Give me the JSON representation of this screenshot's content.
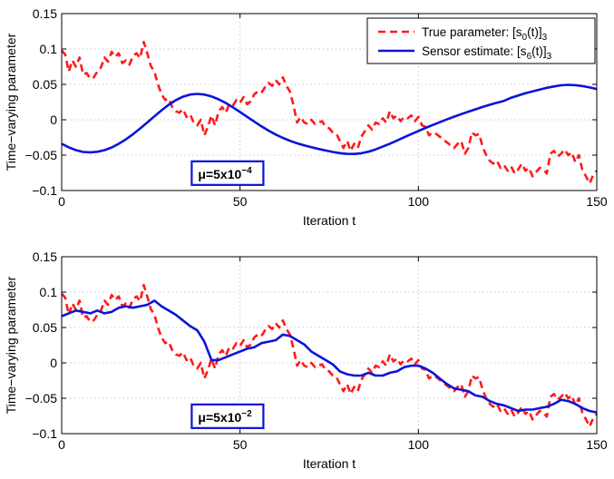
{
  "chart_data": [
    {
      "type": "line",
      "xlabel": "Iteration t",
      "ylabel": "Time−varying parameter",
      "xlim": [
        0,
        150
      ],
      "ylim": [
        -0.1,
        0.15
      ],
      "xticks": [
        0,
        50,
        100,
        150
      ],
      "yticks": [
        -0.1,
        -0.05,
        0,
        0.05,
        0.1,
        0.15
      ],
      "xtick_labels": [
        "0",
        "50",
        "100",
        "150"
      ],
      "ytick_labels": [
        "−0.1",
        "−0.05",
        "0",
        "0.05",
        "0.1",
        "0.15"
      ],
      "grid": true,
      "legend_position": "top-right",
      "annotation": {
        "prefix": "μ=5x10",
        "exponent": "−4",
        "x": 54,
        "y": -0.078
      },
      "series": [
        {
          "name_main": "True parameter: [s",
          "name_sub1": "0",
          "name_mid": "(t)]",
          "name_sub2": "3",
          "style": "dashed",
          "color": "#ff1a1a",
          "x": [
            0,
            1,
            2,
            3,
            4,
            5,
            6,
            7,
            8,
            9,
            10,
            11,
            12,
            13,
            14,
            15,
            16,
            17,
            18,
            19,
            20,
            21,
            22,
            23,
            24,
            25,
            26,
            27,
            28,
            29,
            30,
            31,
            32,
            33,
            34,
            35,
            36,
            37,
            38,
            39,
            40,
            41,
            42,
            43,
            44,
            45,
            46,
            47,
            48,
            49,
            50,
            51,
            52,
            53,
            54,
            55,
            56,
            57,
            58,
            59,
            60,
            61,
            62,
            63,
            64,
            65,
            66,
            67,
            68,
            69,
            70,
            71,
            72,
            73,
            74,
            75,
            76,
            77,
            78,
            79,
            80,
            81,
            82,
            83,
            84,
            85,
            86,
            87,
            88,
            89,
            90,
            91,
            92,
            93,
            94,
            95,
            96,
            97,
            98,
            99,
            100,
            101,
            102,
            103,
            104,
            105,
            106,
            107,
            108,
            109,
            110,
            111,
            112,
            113,
            114,
            115,
            116,
            117,
            118,
            119,
            120,
            121,
            122,
            123,
            124,
            125,
            126,
            127,
            128,
            129,
            130,
            131,
            132,
            133,
            134,
            135,
            136,
            137,
            138,
            139,
            140,
            141,
            142,
            143,
            144,
            145,
            146,
            147,
            148,
            149,
            150
          ],
          "y": [
            0.098,
            0.092,
            0.068,
            0.084,
            0.075,
            0.088,
            0.064,
            0.066,
            0.058,
            0.06,
            0.068,
            0.074,
            0.088,
            0.082,
            0.096,
            0.089,
            0.094,
            0.08,
            0.084,
            0.078,
            0.09,
            0.094,
            0.087,
            0.11,
            0.094,
            0.076,
            0.068,
            0.05,
            0.036,
            0.028,
            0.03,
            0.018,
            0.012,
            0.01,
            0.015,
            0.004,
            0.008,
            -0.004,
            -0.008,
            0.0,
            -0.022,
            -0.01,
            0.006,
            -0.008,
            0.012,
            0.018,
            0.01,
            0.022,
            0.02,
            0.028,
            0.024,
            0.032,
            0.022,
            0.026,
            0.036,
            0.04,
            0.038,
            0.046,
            0.052,
            0.048,
            0.056,
            0.05,
            0.06,
            0.048,
            0.04,
            0.02,
            -0.004,
            0.004,
            -0.004,
            -0.006,
            0.0,
            -0.006,
            -0.004,
            -0.002,
            -0.01,
            -0.012,
            -0.018,
            -0.02,
            -0.03,
            -0.04,
            -0.03,
            -0.044,
            -0.034,
            -0.04,
            -0.024,
            -0.016,
            -0.008,
            -0.014,
            -0.004,
            -0.006,
            0.002,
            -0.004,
            0.012,
            0.002,
            0.006,
            -0.002,
            0.004,
            0.002,
            0.006,
            -0.002,
            0.004,
            -0.008,
            -0.01,
            -0.022,
            -0.018,
            -0.02,
            -0.024,
            -0.028,
            -0.032,
            -0.036,
            -0.04,
            -0.034,
            -0.03,
            -0.048,
            -0.04,
            -0.018,
            -0.022,
            -0.02,
            -0.038,
            -0.05,
            -0.058,
            -0.062,
            -0.058,
            -0.068,
            -0.064,
            -0.072,
            -0.066,
            -0.076,
            -0.07,
            -0.062,
            -0.072,
            -0.068,
            -0.08,
            -0.074,
            -0.068,
            -0.07,
            -0.076,
            -0.048,
            -0.044,
            -0.052,
            -0.048,
            -0.042,
            -0.05,
            -0.046,
            -0.06,
            -0.05,
            -0.072,
            -0.08,
            -0.09,
            -0.078,
            -0.072
          ]
        },
        {
          "name_main": "Sensor estimate: [s",
          "name_sub1": "6",
          "name_mid": "(t)]",
          "name_sub2": "3",
          "style": "solid",
          "color": "#0a14d8",
          "x": [
            0,
            2,
            4,
            6,
            8,
            10,
            12,
            14,
            16,
            18,
            20,
            22,
            24,
            26,
            28,
            30,
            32,
            34,
            36,
            38,
            40,
            42,
            44,
            46,
            48,
            50,
            52,
            54,
            56,
            58,
            60,
            62,
            64,
            66,
            68,
            70,
            72,
            74,
            76,
            78,
            80,
            82,
            84,
            86,
            88,
            90,
            92,
            94,
            96,
            98,
            100,
            102,
            104,
            106,
            108,
            110,
            112,
            114,
            116,
            118,
            120,
            122,
            124,
            126,
            128,
            130,
            132,
            134,
            136,
            138,
            140,
            142,
            144,
            146,
            148,
            150
          ],
          "y": [
            -0.034,
            -0.039,
            -0.043,
            -0.0455,
            -0.046,
            -0.0452,
            -0.043,
            -0.0392,
            -0.034,
            -0.0277,
            -0.0204,
            -0.0123,
            -0.0038,
            0.0049,
            0.0133,
            0.0211,
            0.0277,
            0.0326,
            0.0356,
            0.0366,
            0.0357,
            0.033,
            0.0289,
            0.0237,
            0.0176,
            0.0109,
            0.0041,
            -0.0027,
            -0.0093,
            -0.0154,
            -0.0209,
            -0.0257,
            -0.0298,
            -0.0333,
            -0.0363,
            -0.0389,
            -0.0413,
            -0.0435,
            -0.0455,
            -0.0472,
            -0.0482,
            -0.0483,
            -0.0473,
            -0.0451,
            -0.0419,
            -0.038,
            -0.0338,
            -0.0293,
            -0.0248,
            -0.0203,
            -0.0159,
            -0.0116,
            -0.0074,
            -0.0034,
            0.0005,
            0.0043,
            0.0079,
            0.0114,
            0.0148,
            0.0181,
            0.0212,
            0.024,
            0.0267,
            0.0311,
            0.0344,
            0.0374,
            0.0401,
            0.0427,
            0.0451,
            0.047,
            0.0487,
            0.0493,
            0.0488,
            0.0475,
            0.0456,
            0.0434
          ]
        }
      ]
    },
    {
      "type": "line",
      "xlabel": "Iteration t",
      "ylabel": "Time−varying parameter",
      "xlim": [
        0,
        150
      ],
      "ylim": [
        -0.1,
        0.15
      ],
      "xticks": [
        0,
        50,
        100,
        150
      ],
      "yticks": [
        -0.1,
        -0.05,
        0,
        0.05,
        0.1,
        0.15
      ],
      "xtick_labels": [
        "0",
        "50",
        "100",
        "150"
      ],
      "ytick_labels": [
        "−0.1",
        "−0.05",
        "0",
        "0.05",
        "0.1",
        "0.15"
      ],
      "grid": true,
      "annotation": {
        "prefix": "μ=5x10",
        "exponent": "−2",
        "x": 54,
        "y": -0.078
      },
      "series": [
        {
          "style": "dashed",
          "color": "#ff1a1a",
          "x": [
            0,
            1,
            2,
            3,
            4,
            5,
            6,
            7,
            8,
            9,
            10,
            11,
            12,
            13,
            14,
            15,
            16,
            17,
            18,
            19,
            20,
            21,
            22,
            23,
            24,
            25,
            26,
            27,
            28,
            29,
            30,
            31,
            32,
            33,
            34,
            35,
            36,
            37,
            38,
            39,
            40,
            41,
            42,
            43,
            44,
            45,
            46,
            47,
            48,
            49,
            50,
            51,
            52,
            53,
            54,
            55,
            56,
            57,
            58,
            59,
            60,
            61,
            62,
            63,
            64,
            65,
            66,
            67,
            68,
            69,
            70,
            71,
            72,
            73,
            74,
            75,
            76,
            77,
            78,
            79,
            80,
            81,
            82,
            83,
            84,
            85,
            86,
            87,
            88,
            89,
            90,
            91,
            92,
            93,
            94,
            95,
            96,
            97,
            98,
            99,
            100,
            101,
            102,
            103,
            104,
            105,
            106,
            107,
            108,
            109,
            110,
            111,
            112,
            113,
            114,
            115,
            116,
            117,
            118,
            119,
            120,
            121,
            122,
            123,
            124,
            125,
            126,
            127,
            128,
            129,
            130,
            131,
            132,
            133,
            134,
            135,
            136,
            137,
            138,
            139,
            140,
            141,
            142,
            143,
            144,
            145,
            146,
            147,
            148,
            149,
            150
          ],
          "y": [
            0.098,
            0.092,
            0.068,
            0.084,
            0.075,
            0.088,
            0.064,
            0.066,
            0.058,
            0.06,
            0.068,
            0.074,
            0.088,
            0.082,
            0.096,
            0.089,
            0.094,
            0.08,
            0.084,
            0.078,
            0.09,
            0.094,
            0.087,
            0.11,
            0.094,
            0.076,
            0.068,
            0.05,
            0.036,
            0.028,
            0.03,
            0.018,
            0.012,
            0.01,
            0.015,
            0.004,
            0.008,
            -0.004,
            -0.008,
            0.0,
            -0.022,
            -0.01,
            0.006,
            -0.008,
            0.012,
            0.018,
            0.01,
            0.022,
            0.02,
            0.028,
            0.024,
            0.032,
            0.022,
            0.026,
            0.036,
            0.04,
            0.038,
            0.046,
            0.052,
            0.048,
            0.056,
            0.05,
            0.06,
            0.048,
            0.04,
            0.02,
            -0.004,
            0.004,
            -0.004,
            -0.006,
            0.0,
            -0.006,
            -0.004,
            -0.002,
            -0.01,
            -0.012,
            -0.018,
            -0.02,
            -0.03,
            -0.04,
            -0.03,
            -0.044,
            -0.034,
            -0.04,
            -0.024,
            -0.016,
            -0.008,
            -0.014,
            -0.004,
            -0.006,
            0.002,
            -0.004,
            0.012,
            0.002,
            0.006,
            -0.002,
            0.004,
            0.002,
            0.006,
            -0.002,
            0.004,
            -0.008,
            -0.01,
            -0.022,
            -0.018,
            -0.02,
            -0.024,
            -0.028,
            -0.032,
            -0.036,
            -0.04,
            -0.034,
            -0.03,
            -0.048,
            -0.04,
            -0.018,
            -0.022,
            -0.02,
            -0.038,
            -0.05,
            -0.058,
            -0.062,
            -0.058,
            -0.068,
            -0.064,
            -0.072,
            -0.066,
            -0.076,
            -0.07,
            -0.062,
            -0.072,
            -0.068,
            -0.08,
            -0.074,
            -0.068,
            -0.07,
            -0.076,
            -0.048,
            -0.044,
            -0.052,
            -0.048,
            -0.042,
            -0.05,
            -0.046,
            -0.06,
            -0.05,
            -0.072,
            -0.08,
            -0.09,
            -0.078,
            -0.072
          ]
        },
        {
          "style": "solid",
          "color": "#0a14d8",
          "x": [
            0,
            2,
            4,
            6,
            8,
            10,
            12,
            14,
            16,
            18,
            20,
            22,
            24,
            26,
            28,
            30,
            32,
            34,
            36,
            38,
            40,
            42,
            44,
            46,
            48,
            50,
            52,
            54,
            56,
            58,
            60,
            62,
            64,
            66,
            68,
            70,
            72,
            74,
            76,
            78,
            80,
            82,
            84,
            86,
            88,
            90,
            92,
            94,
            96,
            98,
            100,
            102,
            104,
            106,
            108,
            110,
            112,
            114,
            116,
            118,
            120,
            122,
            124,
            126,
            128,
            130,
            132,
            134,
            136,
            138,
            140,
            142,
            144,
            146,
            148,
            150
          ],
          "y": [
            0.066,
            0.07,
            0.074,
            0.072,
            0.07,
            0.074,
            0.07,
            0.072,
            0.078,
            0.08,
            0.078,
            0.08,
            0.082,
            0.088,
            0.08,
            0.074,
            0.068,
            0.06,
            0.052,
            0.046,
            0.03,
            0.004,
            0.004,
            0.008,
            0.012,
            0.016,
            0.02,
            0.022,
            0.028,
            0.03,
            0.032,
            0.04,
            0.038,
            0.032,
            0.026,
            0.016,
            0.01,
            0.004,
            -0.002,
            -0.012,
            -0.016,
            -0.018,
            -0.018,
            -0.014,
            -0.018,
            -0.018,
            -0.014,
            -0.012,
            -0.006,
            -0.004,
            -0.004,
            -0.008,
            -0.014,
            -0.022,
            -0.03,
            -0.036,
            -0.038,
            -0.04,
            -0.046,
            -0.048,
            -0.054,
            -0.058,
            -0.06,
            -0.064,
            -0.068,
            -0.066,
            -0.066,
            -0.064,
            -0.062,
            -0.058,
            -0.052,
            -0.054,
            -0.058,
            -0.064,
            -0.068,
            -0.07
          ]
        }
      ]
    }
  ]
}
